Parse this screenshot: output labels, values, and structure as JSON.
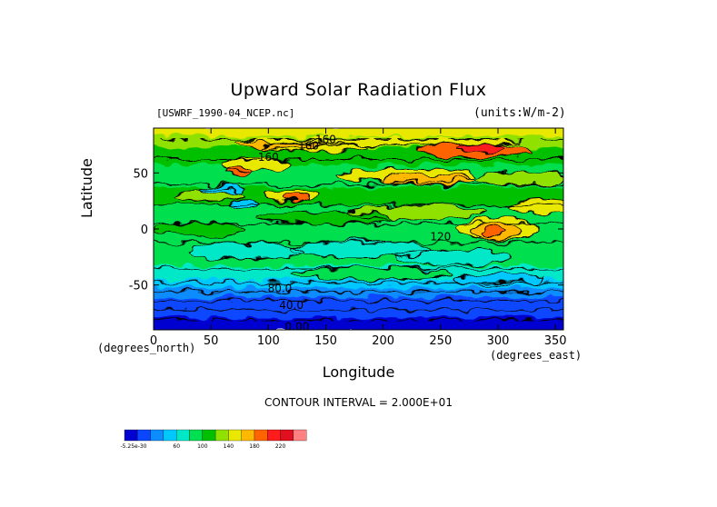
{
  "figure": {
    "title": "Upward Solar Radiation Flux",
    "source_label": "[USWRF_1990-04_NCEP.nc]",
    "units_label": "(units:W/m^-2)",
    "xlabel": "Longitude",
    "ylabel": "Latitude",
    "x_units_left": "(degrees_north)",
    "x_units_right": "(degrees_east)",
    "contour_interval": "CONTOUR INTERVAL = 2.000E+01"
  },
  "chart_data": {
    "type": "heatmap",
    "title": "Upward Solar Radiation Flux",
    "xlabel": "Longitude",
    "ylabel": "Latitude",
    "units": "W/m^-2",
    "xlim": [
      0,
      357
    ],
    "ylim": [
      -90,
      90
    ],
    "x_ticks": [
      0,
      50,
      100,
      150,
      200,
      250,
      300,
      350
    ],
    "y_ticks": [
      50,
      0,
      -50
    ],
    "contour_labels": [
      {
        "text": "160",
        "x": 150,
        "y": 80
      },
      {
        "text": "160",
        "x": 135,
        "y": 74
      },
      {
        "text": "160",
        "x": 100,
        "y": 64
      },
      {
        "text": "120",
        "x": 250,
        "y": -7
      },
      {
        "text": "80.0",
        "x": 110,
        "y": -53
      },
      {
        "text": "40.0",
        "x": 120,
        "y": -68
      },
      {
        "text": "0.00",
        "x": 125,
        "y": -87
      }
    ],
    "colorbar": {
      "colors": [
        "#0000d0",
        "#0a46ff",
        "#0c8cff",
        "#00c8ff",
        "#00e8c8",
        "#00e050",
        "#00c000",
        "#90e000",
        "#e8e800",
        "#ffb800",
        "#ff6400",
        "#ff1c1c",
        "#e01020",
        "#ff8080"
      ],
      "labels": [
        "-5.25e-30",
        "60",
        "100",
        "140",
        "180",
        "220"
      ]
    },
    "grid": false,
    "legend": "colorbar bottom-left"
  }
}
